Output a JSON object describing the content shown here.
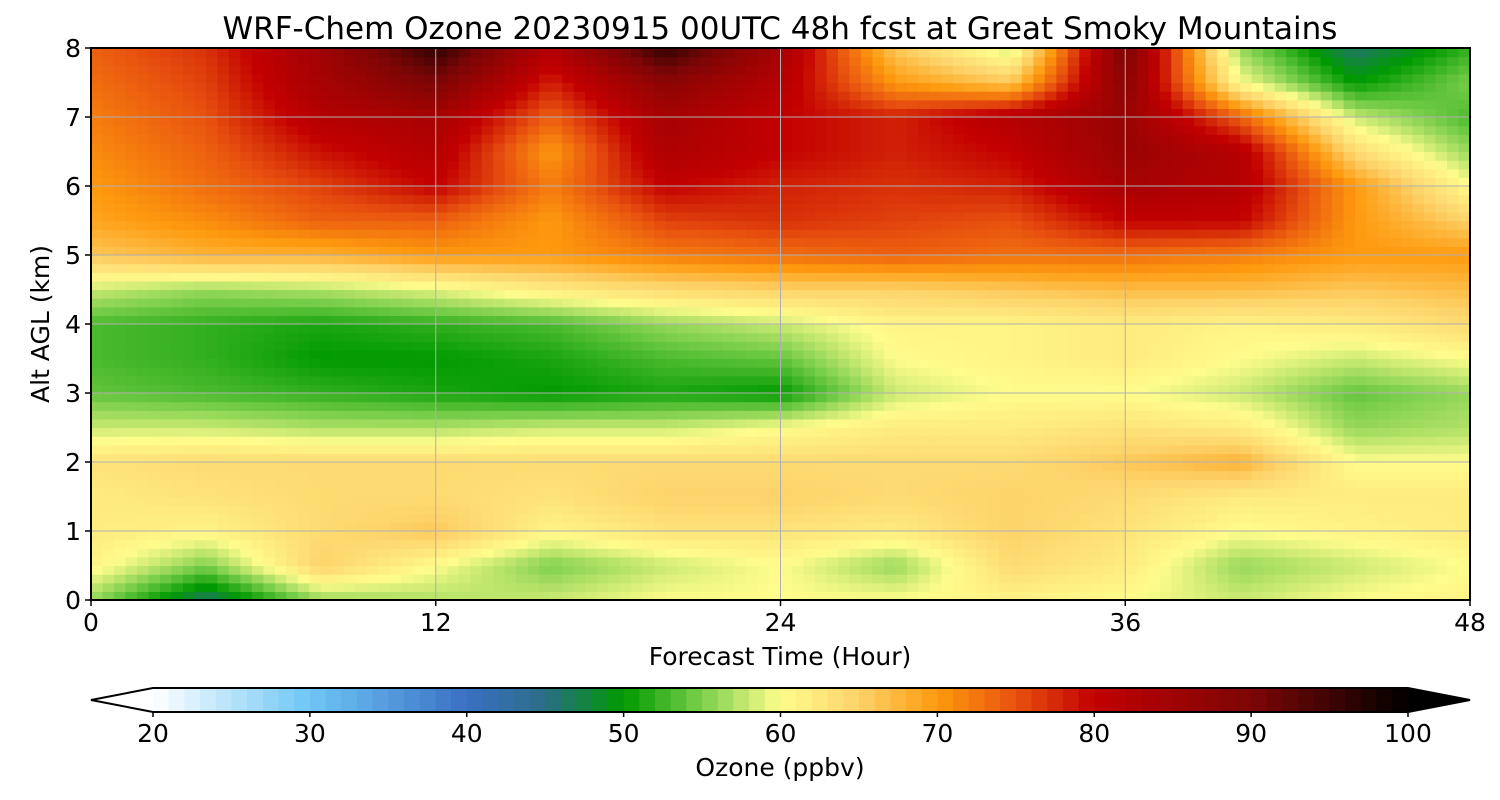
{
  "chart_data": {
    "type": "heatmap",
    "title": "WRF-Chem Ozone  20230915 00UTC 48h fcst at Great Smoky Mountains",
    "xlabel": "Forecast Time (Hour)",
    "ylabel": "Alt AGL (km)",
    "xlim": [
      0,
      48
    ],
    "ylim": [
      0,
      8
    ],
    "x_ticks": [
      "0",
      "12",
      "24",
      "36",
      "48"
    ],
    "y_ticks": [
      "0",
      "1",
      "2",
      "3",
      "4",
      "5",
      "6",
      "7",
      "8"
    ],
    "grid": true,
    "x": [
      0,
      4,
      8,
      12,
      16,
      20,
      24,
      28,
      32,
      36,
      40,
      44,
      48
    ],
    "y": [
      0,
      0.5,
      1,
      1.5,
      2,
      2.5,
      3,
      3.5,
      4,
      4.5,
      5,
      5.5,
      6,
      6.5,
      7,
      7.5,
      8
    ],
    "z": [
      [
        56,
        46,
        56,
        57,
        58,
        60,
        60,
        60,
        61,
        60,
        58,
        60,
        61
      ],
      [
        61,
        55,
        65,
        60,
        55,
        58,
        60,
        56,
        64,
        62,
        56,
        58,
        60
      ],
      [
        62,
        61,
        64,
        66,
        61,
        63,
        63,
        62,
        65,
        63,
        60,
        61,
        62
      ],
      [
        62,
        63,
        64,
        64,
        63,
        65,
        65,
        64,
        65,
        64,
        62,
        62,
        62
      ],
      [
        63,
        64,
        64,
        64,
        64,
        64,
        64,
        64,
        64,
        66,
        68,
        60,
        60
      ],
      [
        58,
        58,
        57,
        57,
        58,
        58,
        60,
        62,
        62,
        63,
        62,
        56,
        57
      ],
      [
        54,
        53,
        52,
        51,
        50,
        51,
        50,
        58,
        60,
        60,
        58,
        54,
        56
      ],
      [
        53,
        52,
        50,
        50,
        51,
        53,
        54,
        60,
        61,
        62,
        60,
        58,
        60
      ],
      [
        53,
        52,
        51,
        52,
        53,
        56,
        58,
        61,
        61,
        62,
        61,
        62,
        64
      ],
      [
        58,
        56,
        57,
        59,
        62,
        64,
        65,
        65,
        66,
        67,
        67,
        66,
        67
      ],
      [
        66,
        68,
        68,
        70,
        70,
        72,
        73,
        74,
        73,
        73,
        72,
        70,
        70
      ],
      [
        69,
        71,
        74,
        74,
        70,
        76,
        77,
        76,
        75,
        80,
        80,
        70,
        65
      ],
      [
        70,
        73,
        76,
        80,
        72,
        80,
        78,
        77,
        78,
        84,
        82,
        70,
        60
      ],
      [
        71,
        74,
        79,
        82,
        70,
        83,
        80,
        78,
        80,
        86,
        82,
        64,
        56
      ],
      [
        72,
        75,
        82,
        84,
        74,
        84,
        80,
        78,
        82,
        86,
        74,
        58,
        53
      ],
      [
        73,
        76,
        84,
        90,
        78,
        88,
        82,
        70,
        66,
        88,
        60,
        50,
        55
      ],
      [
        74,
        77,
        85,
        96,
        82,
        96,
        84,
        66,
        58,
        90,
        56,
        46,
        52
      ]
    ],
    "zlim": [
      20,
      100
    ],
    "colorbar": {
      "label": "Ozone  (ppbv)",
      "ticks": [
        "20",
        "30",
        "40",
        "50",
        "60",
        "70",
        "80",
        "90",
        "100"
      ],
      "extend": "both",
      "placement": "bottom"
    },
    "colormap_stops": [
      {
        "v": 20,
        "c": "#ffffff"
      },
      {
        "v": 30,
        "c": "#6ec6f5"
      },
      {
        "v": 40,
        "c": "#3a70c4"
      },
      {
        "v": 45,
        "c": "#2a6e86"
      },
      {
        "v": 50,
        "c": "#009a00"
      },
      {
        "v": 55,
        "c": "#7ccf4c"
      },
      {
        "v": 60,
        "c": "#fffc8c"
      },
      {
        "v": 65,
        "c": "#fdd36a"
      },
      {
        "v": 70,
        "c": "#fe9a0e"
      },
      {
        "v": 75,
        "c": "#e8520f"
      },
      {
        "v": 80,
        "c": "#c20000"
      },
      {
        "v": 90,
        "c": "#7d0606"
      },
      {
        "v": 100,
        "c": "#000000"
      }
    ]
  }
}
